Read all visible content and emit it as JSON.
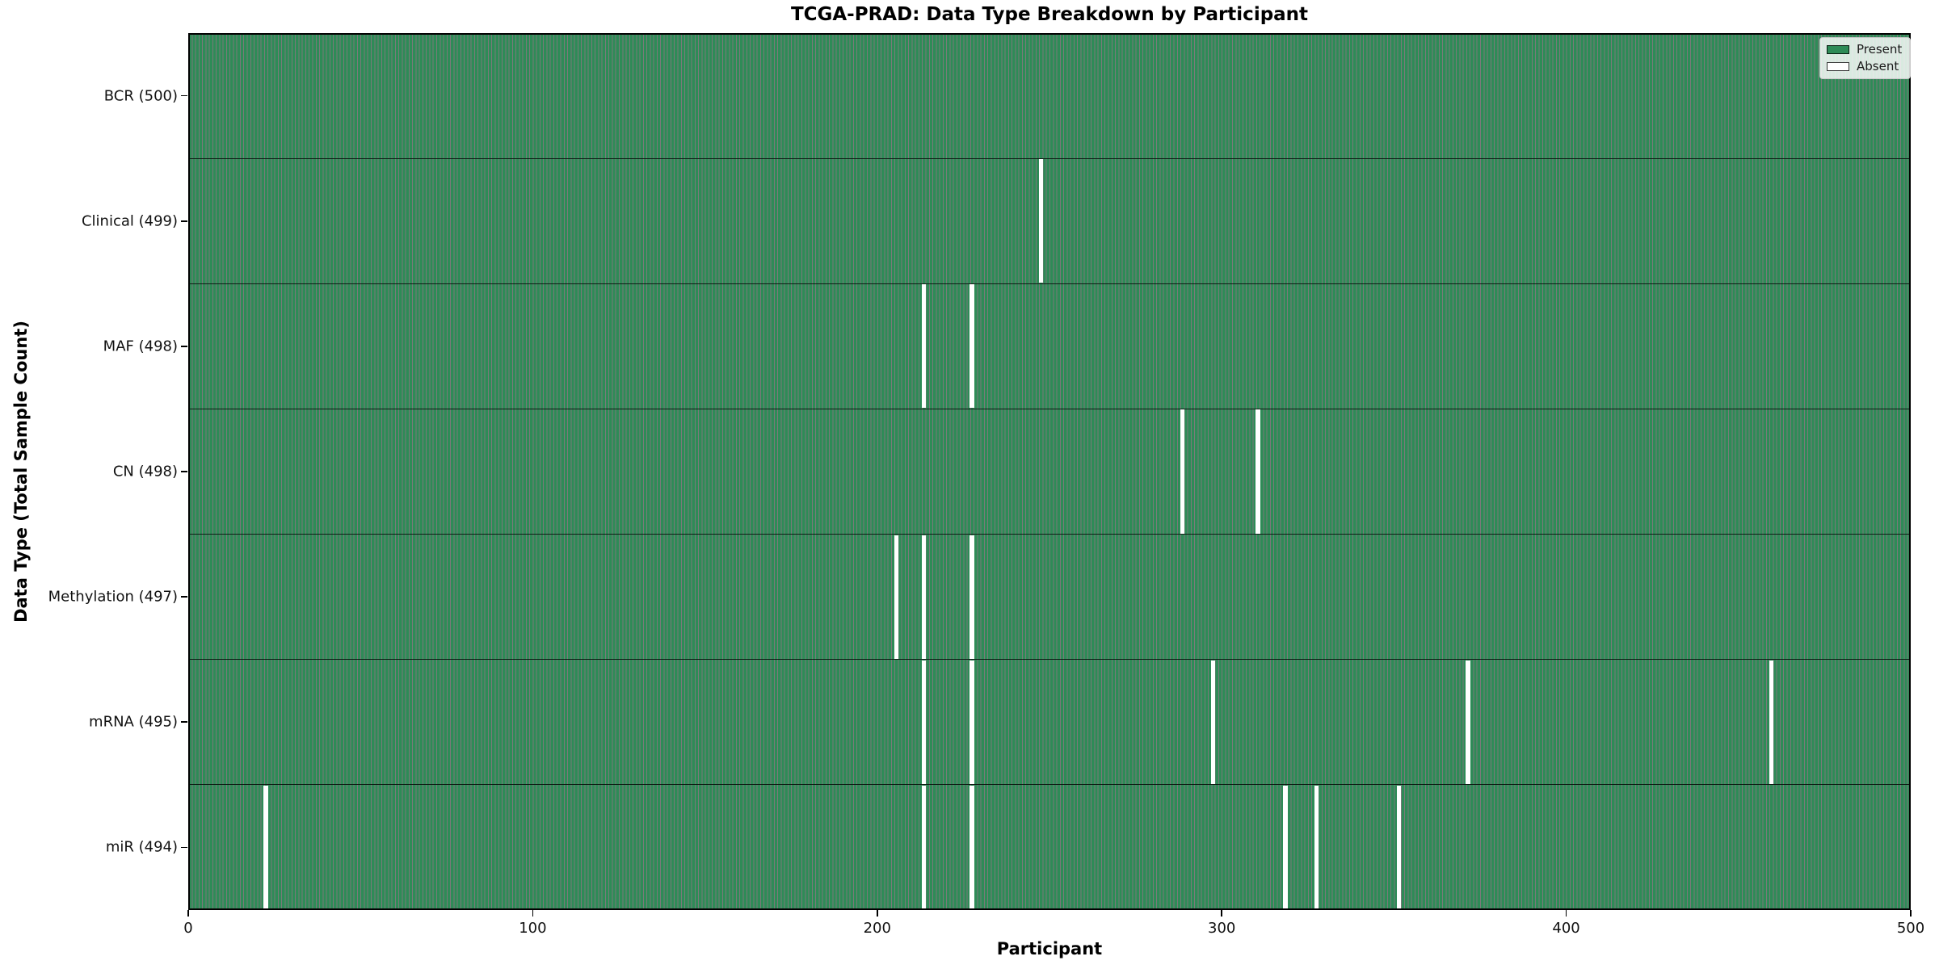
{
  "title": "TCGA-PRAD: Data Type Breakdown by Participant",
  "chart_data": {
    "type": "heatmap",
    "title": "TCGA-PRAD: Data Type Breakdown by Participant",
    "xlabel": "Participant",
    "ylabel": "Data Type (Total Sample Count)",
    "x_range": [
      0,
      500
    ],
    "x_ticks": [
      "0",
      "100",
      "200",
      "300",
      "400",
      "500"
    ],
    "n_participants": 500,
    "grid": false,
    "legend": {
      "position": "upper right",
      "entries": [
        {
          "label": "Present",
          "color": "#2e8b57"
        },
        {
          "label": "Absent",
          "color": "#ffffff"
        }
      ]
    },
    "colors": {
      "present": "#2e8b57",
      "absent": "#ffffff",
      "cell_edge": "rgba(0,0,0,0.52)",
      "row_separator": "rgba(0,0,0,0.78)",
      "legend_bg": "rgba(255,255,255,0.82)"
    },
    "rows": [
      {
        "key": "bcr",
        "data_type": "BCR",
        "present_count": 500,
        "label": "BCR (500)",
        "absent_participants": []
      },
      {
        "key": "clinical",
        "data_type": "Clinical",
        "present_count": 499,
        "label": "Clinical (499)",
        "absent_participants": [
          247
        ]
      },
      {
        "key": "maf",
        "data_type": "MAF",
        "present_count": 498,
        "label": "MAF (498)",
        "absent_participants": [
          213,
          227
        ]
      },
      {
        "key": "cn",
        "data_type": "CN",
        "present_count": 498,
        "label": "CN (498)",
        "absent_participants": [
          288,
          310
        ]
      },
      {
        "key": "methylation",
        "data_type": "Methylation",
        "present_count": 497,
        "label": "Methylation (497)",
        "absent_participants": [
          205,
          213,
          227
        ]
      },
      {
        "key": "mrna",
        "data_type": "mRNA",
        "present_count": 495,
        "label": "mRNA (495)",
        "absent_participants": [
          213,
          227,
          297,
          371,
          459
        ]
      },
      {
        "key": "mir",
        "data_type": "miR",
        "present_count": 494,
        "label": "miR (494)",
        "absent_participants": [
          22,
          213,
          227,
          318,
          327,
          351
        ]
      }
    ]
  }
}
